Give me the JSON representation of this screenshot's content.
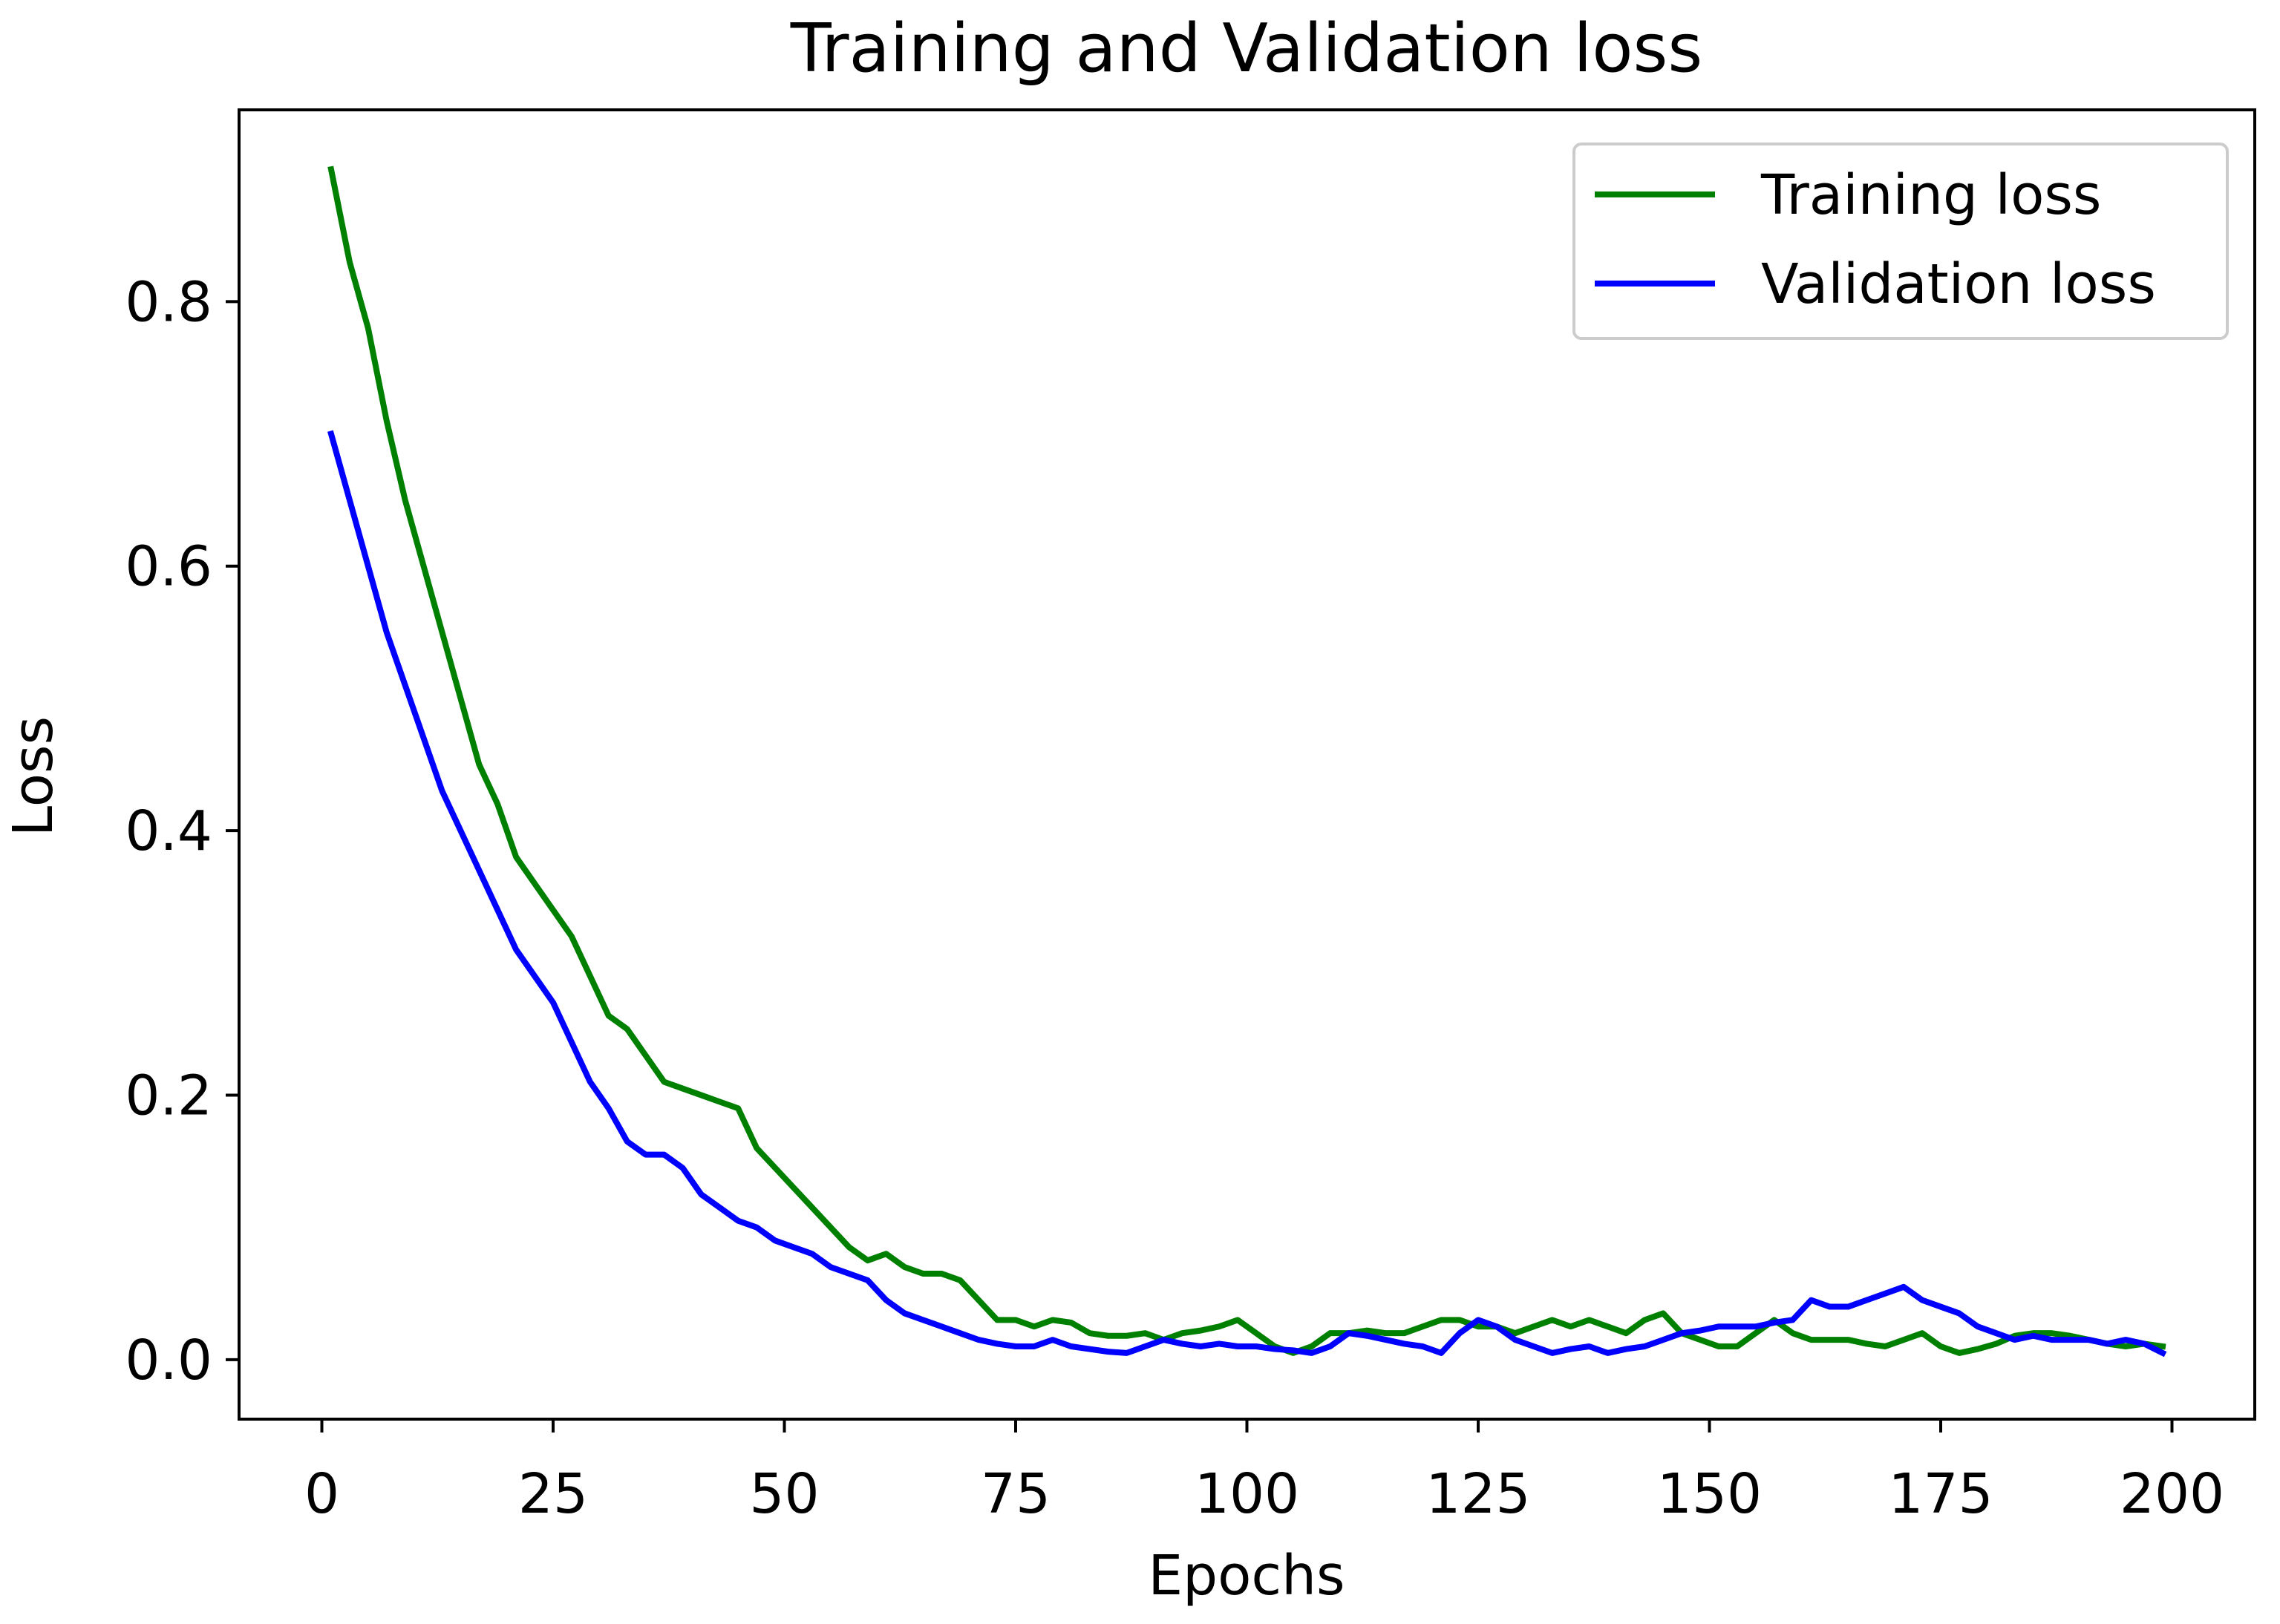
{
  "chart_data": {
    "type": "line",
    "title": "Training and Validation loss",
    "xlabel": "Epochs",
    "ylabel": "Loss",
    "xlim": [
      -8.95,
      208.95
    ],
    "ylim": [
      -0.045,
      0.945
    ],
    "x_ticks": [
      {
        "value": 0,
        "label": "0"
      },
      {
        "value": 25,
        "label": "25"
      },
      {
        "value": 50,
        "label": "50"
      },
      {
        "value": 75,
        "label": "75"
      },
      {
        "value": 100,
        "label": "100"
      },
      {
        "value": 125,
        "label": "125"
      },
      {
        "value": 150,
        "label": "150"
      },
      {
        "value": 175,
        "label": "175"
      },
      {
        "value": 200,
        "label": "200"
      }
    ],
    "y_ticks": [
      {
        "value": 0.0,
        "label": "0.0"
      },
      {
        "value": 0.2,
        "label": "0.2"
      },
      {
        "value": 0.4,
        "label": "0.4"
      },
      {
        "value": 0.6,
        "label": "0.6"
      },
      {
        "value": 0.8,
        "label": "0.8"
      }
    ],
    "grid": false,
    "legend_position": "top-right",
    "series": [
      {
        "name": "Training loss",
        "color": "#008000",
        "x": [
          1,
          3,
          5,
          7,
          9,
          11,
          13,
          15,
          17,
          19,
          21,
          23,
          25,
          27,
          29,
          31,
          33,
          35,
          37,
          39,
          41,
          43,
          45,
          47,
          49,
          51,
          53,
          55,
          57,
          59,
          61,
          63,
          65,
          67,
          69,
          71,
          73,
          75,
          77,
          79,
          81,
          83,
          85,
          87,
          89,
          91,
          93,
          95,
          97,
          99,
          101,
          103,
          105,
          107,
          109,
          111,
          113,
          115,
          117,
          119,
          121,
          123,
          125,
          127,
          129,
          131,
          133,
          135,
          137,
          139,
          141,
          143,
          145,
          147,
          149,
          151,
          153,
          155,
          157,
          159,
          161,
          163,
          165,
          167,
          169,
          171,
          173,
          175,
          177,
          179,
          181,
          183,
          185,
          187,
          189,
          191,
          193,
          195,
          197,
          199
        ],
        "y": [
          0.9,
          0.83,
          0.78,
          0.71,
          0.65,
          0.6,
          0.55,
          0.5,
          0.45,
          0.42,
          0.38,
          0.36,
          0.34,
          0.32,
          0.29,
          0.26,
          0.25,
          0.23,
          0.21,
          0.205,
          0.2,
          0.195,
          0.19,
          0.16,
          0.145,
          0.13,
          0.115,
          0.1,
          0.085,
          0.075,
          0.08,
          0.07,
          0.065,
          0.065,
          0.06,
          0.045,
          0.03,
          0.03,
          0.025,
          0.03,
          0.028,
          0.02,
          0.018,
          0.018,
          0.02,
          0.015,
          0.02,
          0.022,
          0.025,
          0.03,
          0.02,
          0.01,
          0.005,
          0.01,
          0.02,
          0.02,
          0.022,
          0.02,
          0.02,
          0.025,
          0.03,
          0.03,
          0.025,
          0.025,
          0.02,
          0.025,
          0.03,
          0.025,
          0.03,
          0.025,
          0.02,
          0.03,
          0.035,
          0.02,
          0.015,
          0.01,
          0.01,
          0.02,
          0.03,
          0.02,
          0.015,
          0.015,
          0.015,
          0.012,
          0.01,
          0.015,
          0.02,
          0.01,
          0.005,
          0.008,
          0.012,
          0.018,
          0.02,
          0.02,
          0.018,
          0.015,
          0.012,
          0.01,
          0.012,
          0.01
        ]
      },
      {
        "name": "Validation loss",
        "color": "#0000ff",
        "x": [
          1,
          3,
          5,
          7,
          9,
          11,
          13,
          15,
          17,
          19,
          21,
          23,
          25,
          27,
          29,
          31,
          33,
          35,
          37,
          39,
          41,
          43,
          45,
          47,
          49,
          51,
          53,
          55,
          57,
          59,
          61,
          63,
          65,
          67,
          69,
          71,
          73,
          75,
          77,
          79,
          81,
          83,
          85,
          87,
          89,
          91,
          93,
          95,
          97,
          99,
          101,
          103,
          105,
          107,
          109,
          111,
          113,
          115,
          117,
          119,
          121,
          123,
          125,
          127,
          129,
          131,
          133,
          135,
          137,
          139,
          141,
          143,
          145,
          147,
          149,
          151,
          153,
          155,
          157,
          159,
          161,
          163,
          165,
          167,
          169,
          171,
          173,
          175,
          177,
          179,
          181,
          183,
          185,
          187,
          189,
          191,
          193,
          195,
          197,
          199
        ],
        "y": [
          0.7,
          0.65,
          0.6,
          0.55,
          0.51,
          0.47,
          0.43,
          0.4,
          0.37,
          0.34,
          0.31,
          0.29,
          0.27,
          0.24,
          0.21,
          0.19,
          0.165,
          0.155,
          0.155,
          0.145,
          0.125,
          0.115,
          0.105,
          0.1,
          0.09,
          0.085,
          0.08,
          0.07,
          0.065,
          0.06,
          0.045,
          0.035,
          0.03,
          0.025,
          0.02,
          0.015,
          0.012,
          0.01,
          0.01,
          0.015,
          0.01,
          0.008,
          0.006,
          0.005,
          0.01,
          0.015,
          0.012,
          0.01,
          0.012,
          0.01,
          0.01,
          0.008,
          0.007,
          0.005,
          0.01,
          0.02,
          0.018,
          0.015,
          0.012,
          0.01,
          0.005,
          0.02,
          0.03,
          0.025,
          0.015,
          0.01,
          0.005,
          0.008,
          0.01,
          0.005,
          0.008,
          0.01,
          0.015,
          0.02,
          0.022,
          0.025,
          0.025,
          0.025,
          0.028,
          0.03,
          0.045,
          0.04,
          0.04,
          0.045,
          0.05,
          0.055,
          0.045,
          0.04,
          0.035,
          0.025,
          0.02,
          0.015,
          0.018,
          0.015,
          0.015,
          0.015,
          0.012,
          0.015,
          0.012,
          0.005
        ]
      }
    ]
  }
}
